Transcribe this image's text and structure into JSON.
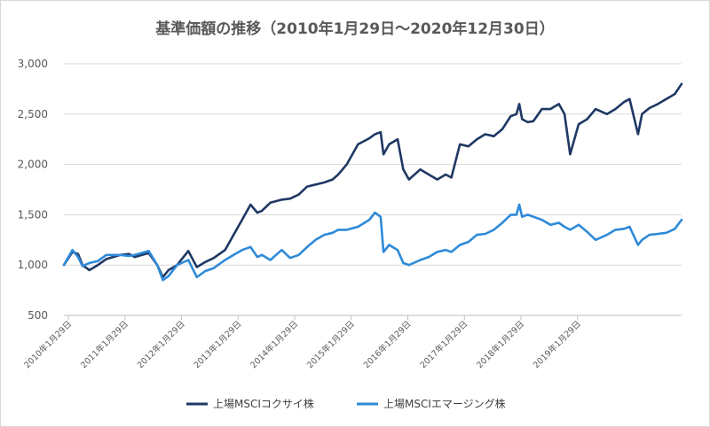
{
  "chart_data": {
    "type": "line",
    "title": "基準価額の推移（2010年1月29日～2020年12月30日）",
    "xlabel": "",
    "ylabel": "",
    "ylim": [
      500,
      3000
    ],
    "yticks": [
      500,
      1000,
      1500,
      2000,
      2500,
      3000
    ],
    "ytick_labels": [
      "500",
      "1,000",
      "1,500",
      "2,000",
      "2,500",
      "3,000"
    ],
    "xlim": [
      2010.0,
      2020.92
    ],
    "x_tick_labels": [
      "2010年1月29日",
      "2011年1月29日",
      "2012年1月29日",
      "2013年1月29日",
      "2014年1月29日",
      "2015年1月29日",
      "2016年1月29日",
      "2017年1月29日",
      "2018年1月29日",
      "2019年1月29日"
    ],
    "grid": true,
    "legend_position": "bottom",
    "x": [
      2010.0,
      2010.15,
      2010.25,
      2010.33,
      2010.45,
      2010.6,
      2010.75,
      2011.0,
      2011.15,
      2011.25,
      2011.5,
      2011.65,
      2011.75,
      2011.85,
      2012.0,
      2012.2,
      2012.35,
      2012.5,
      2012.65,
      2012.85,
      2013.0,
      2013.15,
      2013.3,
      2013.42,
      2013.5,
      2013.65,
      2013.85,
      2014.0,
      2014.15,
      2014.3,
      2014.45,
      2014.6,
      2014.75,
      2014.85,
      2015.0,
      2015.2,
      2015.4,
      2015.5,
      2015.6,
      2015.65,
      2015.75,
      2015.9,
      2016.0,
      2016.1,
      2016.3,
      2016.45,
      2016.6,
      2016.75,
      2016.85,
      2017.0,
      2017.15,
      2017.3,
      2017.45,
      2017.6,
      2017.75,
      2017.9,
      2018.0,
      2018.05,
      2018.1,
      2018.2,
      2018.3,
      2018.45,
      2018.6,
      2018.75,
      2018.85,
      2018.95,
      2019.1,
      2019.25,
      2019.4,
      2019.6,
      2019.75,
      2019.9,
      2020.0,
      2020.15,
      2020.22,
      2020.35,
      2020.5,
      2020.65,
      2020.8,
      2020.92
    ],
    "series": [
      {
        "name": "上場MSCIコクサイ株",
        "color": "#1f3864",
        "values": [
          1000,
          1130,
          1110,
          1000,
          950,
          1000,
          1060,
          1100,
          1110,
          1080,
          1120,
          1000,
          880,
          950,
          1000,
          1140,
          980,
          1030,
          1070,
          1150,
          1300,
          1450,
          1600,
          1520,
          1540,
          1620,
          1650,
          1660,
          1700,
          1780,
          1800,
          1820,
          1850,
          1900,
          2000,
          2200,
          2260,
          2300,
          2320,
          2100,
          2200,
          2250,
          1950,
          1850,
          1950,
          1900,
          1850,
          1900,
          1870,
          2200,
          2180,
          2250,
          2300,
          2280,
          2350,
          2480,
          2500,
          2600,
          2450,
          2420,
          2430,
          2550,
          2550,
          2600,
          2500,
          2100,
          2400,
          2450,
          2550,
          2500,
          2550,
          2620,
          2650,
          2300,
          2500,
          2560,
          2600,
          2650,
          2700,
          2800
        ]
      },
      {
        "name": "上場MSCIエマージング株",
        "color": "#2e8ad8",
        "values": [
          1000,
          1150,
          1080,
          990,
          1020,
          1040,
          1100,
          1100,
          1090,
          1100,
          1140,
          1000,
          850,
          890,
          1000,
          1050,
          880,
          940,
          970,
          1050,
          1100,
          1150,
          1180,
          1080,
          1100,
          1050,
          1150,
          1070,
          1100,
          1180,
          1250,
          1300,
          1320,
          1350,
          1350,
          1380,
          1450,
          1520,
          1480,
          1130,
          1200,
          1150,
          1020,
          1000,
          1050,
          1080,
          1130,
          1150,
          1130,
          1200,
          1230,
          1300,
          1310,
          1350,
          1420,
          1500,
          1500,
          1600,
          1480,
          1500,
          1480,
          1450,
          1400,
          1420,
          1380,
          1350,
          1400,
          1330,
          1250,
          1300,
          1350,
          1360,
          1380,
          1200,
          1250,
          1300,
          1310,
          1320,
          1360,
          1450
        ]
      }
    ]
  }
}
